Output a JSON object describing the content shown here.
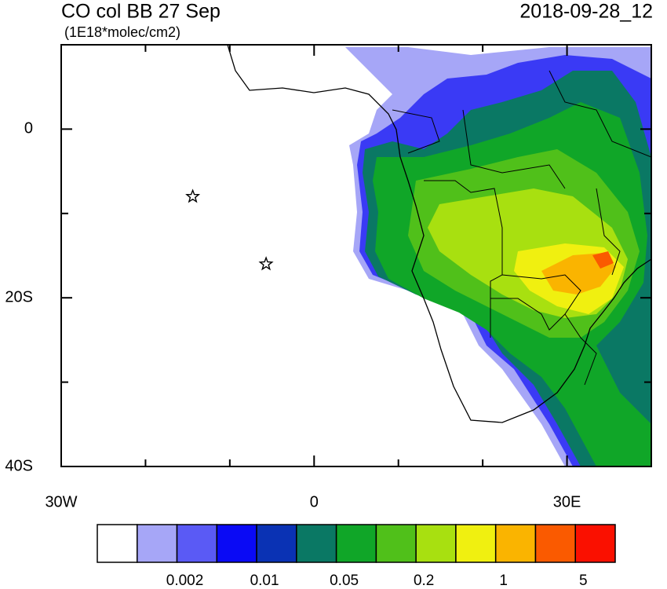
{
  "title": "CO col BB 27 Sep",
  "subtitle": "(1E18*molec/cm2)",
  "timestamp": "2018-09-28_12",
  "map": {
    "xlim": [
      -30,
      40
    ],
    "ylim": [
      -40,
      10
    ],
    "xticks": [
      {
        "value": -30,
        "label": "30W"
      },
      0,
      {
        "value": 30,
        "label": "30E"
      }
    ],
    "yticks": [
      0,
      {
        "value": -20,
        "label": "20S"
      },
      {
        "value": -40,
        "label": "40S"
      }
    ],
    "minor_xticks": [
      -20,
      -10,
      10,
      20,
      40
    ],
    "minor_yticks": [
      10,
      -10,
      -30
    ],
    "markers": [
      {
        "lon": -14.4,
        "lat": -8
      },
      {
        "lon": -5.7,
        "lat": -16
      }
    ]
  },
  "colorbar": {
    "colors": [
      "#ffffff",
      "#a6a6f7",
      "#5a5af5",
      "#0a0af5",
      "#0a32b4",
      "#0a7864",
      "#10a628",
      "#50c01a",
      "#a8e010",
      "#f0f010",
      "#fab400",
      "#fa5a00",
      "#fa1000"
    ],
    "labels": [
      0.002,
      0.01,
      0.05,
      0.2,
      1,
      5
    ]
  }
}
